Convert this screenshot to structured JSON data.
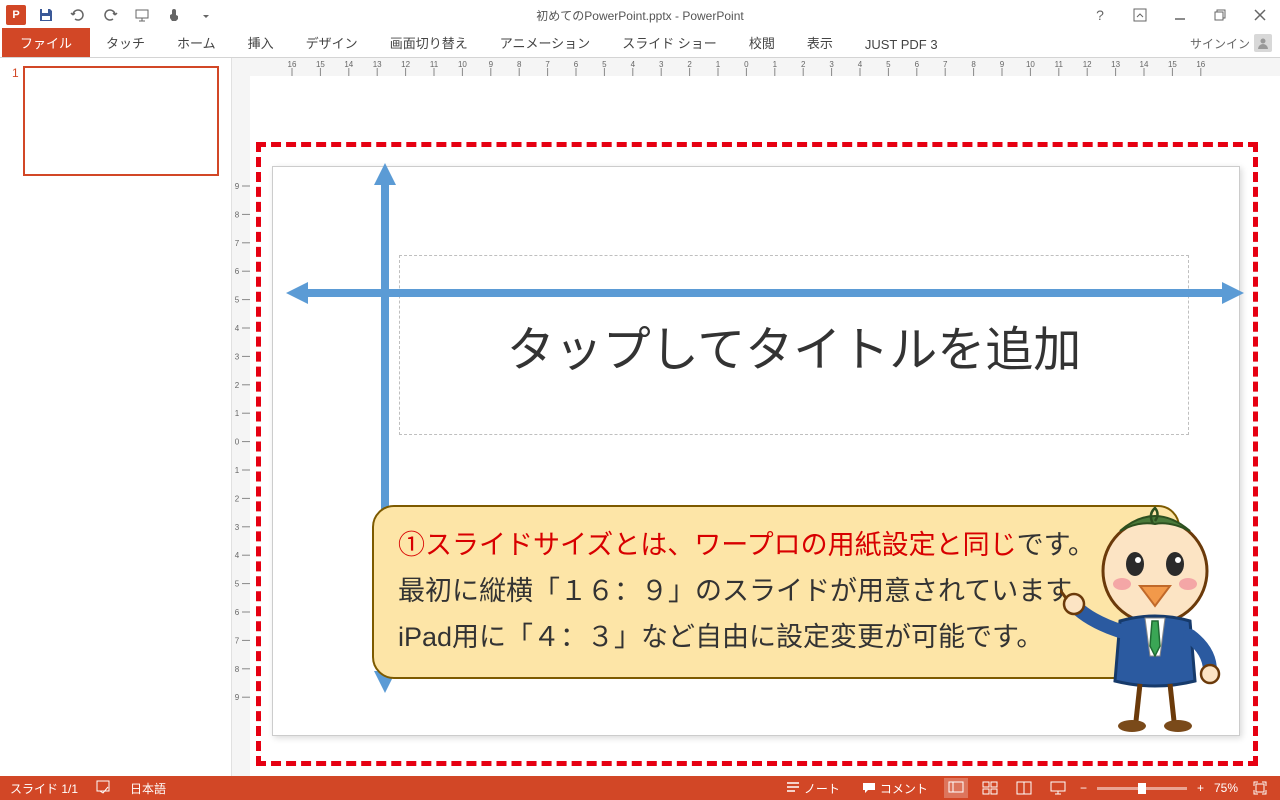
{
  "app": {
    "title": "初めてのPowerPoint.pptx - PowerPoint",
    "icon_text": "P"
  },
  "ribbon": {
    "file": "ファイル",
    "tabs": [
      "タッチ",
      "ホーム",
      "挿入",
      "デザイン",
      "画面切り替え",
      "アニメーション",
      "スライド ショー",
      "校閲",
      "表示",
      "JUST PDF 3"
    ],
    "signin": "サインイン"
  },
  "slides": {
    "current_num": "1"
  },
  "ruler": {
    "h_labels": [
      16,
      15,
      14,
      13,
      12,
      11,
      10,
      9,
      8,
      7,
      6,
      5,
      4,
      3,
      2,
      1,
      0,
      1,
      2,
      3,
      4,
      5,
      6,
      7,
      8,
      9,
      10,
      11,
      12,
      13,
      14,
      15,
      16
    ],
    "v_labels": [
      9,
      8,
      7,
      6,
      5,
      4,
      3,
      2,
      1,
      0,
      1,
      2,
      3,
      4,
      5,
      6,
      7,
      8,
      9
    ]
  },
  "slide": {
    "title_placeholder": "タップしてタイトルを追加",
    "arrow_color": "#5b9bd5",
    "dash_color": "#e60012"
  },
  "bubble": {
    "num": "①",
    "line1_red": "スライドサイズとは、ワープロの用紙設定と同じ",
    "line1_tail": "です。",
    "line2": "最初に縦横「１６：９」のスライドが用意されています。",
    "line3": "iPad用に「４：３」など自由に設定変更が可能です。",
    "bg": "#fde5a7",
    "border": "#7d5a00"
  },
  "status": {
    "slide_info": "スライド 1/1",
    "language": "日本語",
    "notes": "ノート",
    "comments": "コメント",
    "zoom": "75%"
  }
}
